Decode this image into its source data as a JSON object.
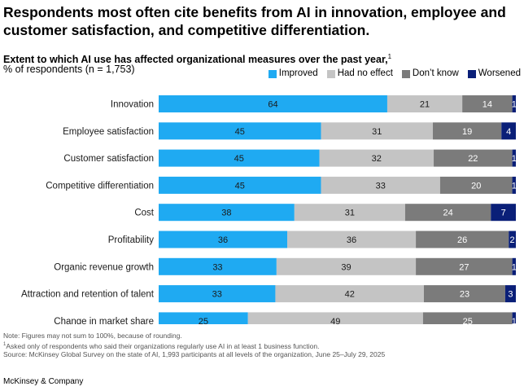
{
  "title": "Respondents most often cite benefits from AI in innovation, employee and customer satisfaction, and competitive differentiation.",
  "subtitle": "Extent to which AI use has affected organizational measures over the past year,",
  "subtitle_footnote_marker": "1",
  "unit_label": "% of respondents (n = 1,753)",
  "colors": {
    "improved": "#1FAAF2",
    "no_effect": "#C4C4C4",
    "dont_know": "#7B7B7B",
    "worsened": "#0A1F78"
  },
  "chart_data": {
    "type": "bar",
    "orientation": "horizontal",
    "stacked": true,
    "categories": [
      "Innovation",
      "Employee satisfaction",
      "Customer satisfaction",
      "Competitive differentiation",
      "Cost",
      "Profitability",
      "Organic revenue growth",
      "Attraction and retention of talent",
      "Change in market share"
    ],
    "series": [
      {
        "name": "Improved",
        "values": [
          64,
          45,
          45,
          45,
          38,
          36,
          33,
          33,
          25
        ]
      },
      {
        "name": "Had no effect",
        "values": [
          21,
          31,
          32,
          33,
          31,
          36,
          39,
          42,
          49
        ]
      },
      {
        "name": "Don’t know",
        "values": [
          14,
          19,
          22,
          20,
          24,
          26,
          27,
          23,
          25
        ]
      },
      {
        "name": "Worsened",
        "values": [
          1,
          4,
          1,
          1,
          7,
          2,
          1,
          3,
          1
        ]
      }
    ],
    "xlim": [
      0,
      100
    ],
    "legend_position": "top-right",
    "grid": false
  },
  "notes": {
    "line1": "Note: Figures may not sum to 100%, because of rounding.",
    "line2_marker": "1",
    "line2": "Asked only of respondents who said their organizations regularly use AI in at least 1 business function.",
    "line3": "Source: McKinsey Global Survey on the state of AI, 1,993 participants at all levels of the organization, June 25–July 29, 2025"
  },
  "brand": "McKinsey & Company"
}
